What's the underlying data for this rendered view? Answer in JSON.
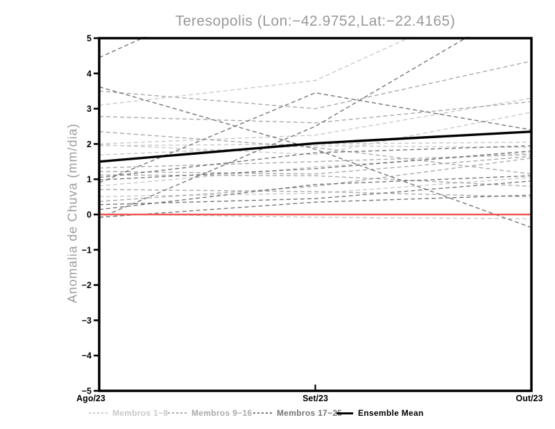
{
  "chart_data": {
    "type": "line",
    "title": "Teresopolis (Lon:−42.9752,Lat:−22.4165)",
    "ylabel": "Anomalia de Chuva (mm/dia)",
    "x_categories": [
      "Ago/23",
      "Set/23",
      "Out/23"
    ],
    "ylim": [
      -5,
      5
    ],
    "yticks": [
      5,
      4,
      3,
      2,
      1,
      0,
      -1,
      -2,
      -3,
      -4,
      -5
    ],
    "ytick_labels": [
      "5",
      "4",
      "3",
      "2",
      "1",
      "0",
      "−1",
      "−2",
      "−3",
      "−4",
      "−5"
    ],
    "grid": false,
    "legend_position": "bottom",
    "line_style_members": "dashed",
    "zero_line": {
      "value": 0,
      "color": "#f25555"
    },
    "groups": [
      {
        "name": "Membros 1−8",
        "color": "#c9c9c9",
        "style": "dashed",
        "members": [
          [
            3.1,
            3.8,
            6.6
          ],
          [
            2.0,
            2.25,
            3.3
          ],
          [
            1.98,
            1.7,
            2.9
          ],
          [
            1.95,
            2.0,
            2.05
          ],
          [
            1.69,
            1.95,
            1.9
          ],
          [
            0.81,
            1.35,
            1.75
          ],
          [
            0.51,
            0.6,
            1.05
          ],
          [
            0.02,
            -0.08,
            -0.12
          ]
        ]
      },
      {
        "name": "Membros 9−16",
        "color": "#a9a9a9",
        "style": "dashed",
        "members": [
          [
            3.5,
            3.0,
            4.35
          ],
          [
            2.78,
            2.6,
            3.2
          ],
          [
            2.35,
            1.9,
            1.15
          ],
          [
            1.32,
            1.5,
            1.7
          ],
          [
            1.12,
            1.1,
            0.8
          ],
          [
            1.22,
            1.15,
            1.65
          ],
          [
            0.71,
            0.65,
            0.5
          ],
          [
            0.37,
            0.8,
            1.6
          ]
        ]
      },
      {
        "name": "Membros 17−25",
        "color": "#757575",
        "style": "dashed",
        "members": [
          [
            4.45,
            7.2,
            5.6
          ],
          [
            -0.1,
            2.5,
            6.1
          ],
          [
            3.62,
            1.85,
            -0.37
          ],
          [
            0.9,
            3.45,
            2.4
          ],
          [
            1.05,
            1.75,
            1.95
          ],
          [
            0.98,
            1.3,
            1.8
          ],
          [
            0.14,
            0.85,
            1.1
          ],
          [
            -0.08,
            0.35,
            0.55
          ],
          [
            0.28,
            0.45,
            0.95
          ]
        ]
      }
    ],
    "ensemble_mean": {
      "name": "Ensemble Mean",
      "color": "#000000",
      "style": "solid",
      "values": [
        1.5,
        2.02,
        2.35
      ]
    }
  }
}
